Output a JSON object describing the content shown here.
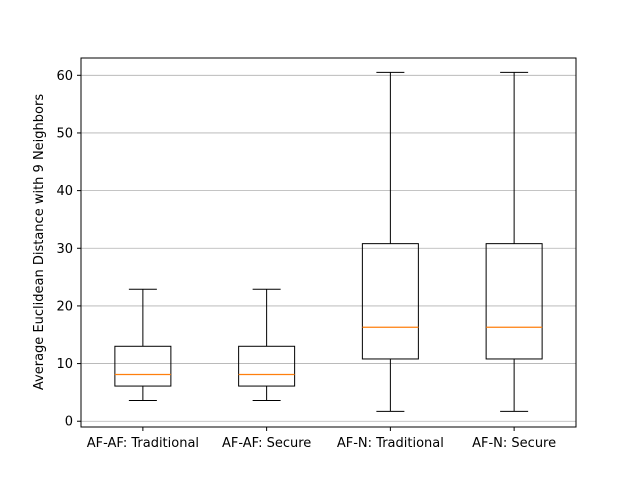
{
  "chart_data": {
    "type": "box",
    "title": "",
    "xlabel": "",
    "ylabel": "Average Euclidean Distance with 9 Neighbors",
    "ylim": [
      -1,
      63
    ],
    "yticks": [
      0,
      10,
      20,
      30,
      40,
      50,
      60
    ],
    "grid": "y-axis",
    "median_color": "#ff7f0e",
    "categories": [
      "AF-AF: Traditional",
      "AF-AF: Secure",
      "AF-N: Traditional",
      "AF-N: Secure"
    ],
    "boxes": [
      {
        "whisker_low": 3.6,
        "q1": 6.1,
        "median": 8.1,
        "q3": 13.0,
        "whisker_high": 22.9
      },
      {
        "whisker_low": 3.6,
        "q1": 6.1,
        "median": 8.1,
        "q3": 13.0,
        "whisker_high": 22.9
      },
      {
        "whisker_low": 1.7,
        "q1": 10.8,
        "median": 16.3,
        "q3": 30.8,
        "whisker_high": 60.5
      },
      {
        "whisker_low": 1.7,
        "q1": 10.8,
        "median": 16.3,
        "q3": 30.8,
        "whisker_high": 60.5
      }
    ]
  }
}
